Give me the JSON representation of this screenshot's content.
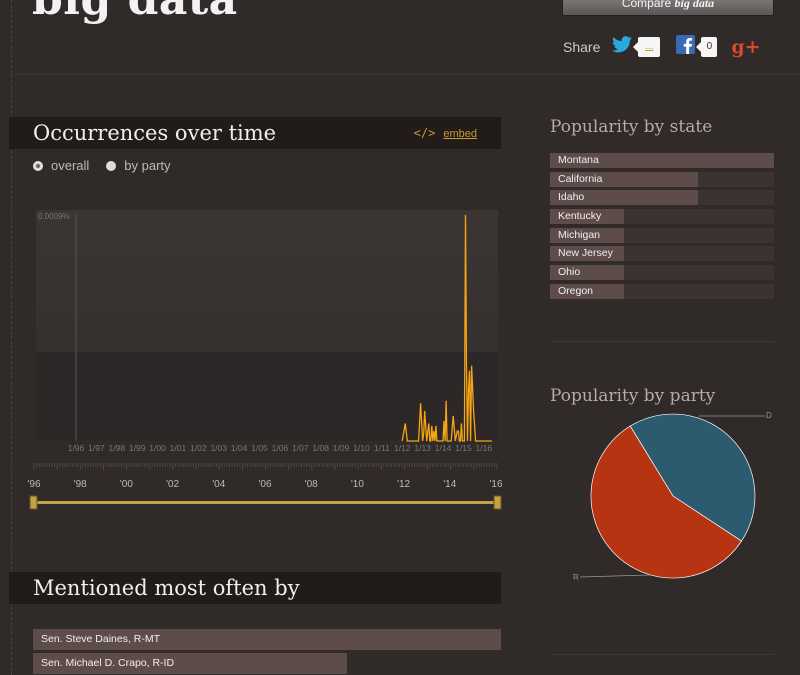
{
  "header": {
    "title": "big data",
    "compare_prefix": "Compare ",
    "compare_term": "big data",
    "share_label": "Share",
    "twitter_count": "...",
    "facebook_count": "0"
  },
  "occurrences": {
    "title": "Occurrences over time",
    "embed_code": "</>",
    "embed_label": "embed",
    "radio_overall": "overall",
    "radio_by_party": "by party",
    "selected": "overall"
  },
  "chart_data": [
    {
      "type": "line",
      "title": "Occurrences over time",
      "ylabel": "",
      "y_tick_label": "0.0009%",
      "ylim": [
        0,
        0.0009
      ],
      "x_tick_labels": [
        "1/96",
        "1/97",
        "1/98",
        "1/99",
        "1/00",
        "1/01",
        "1/02",
        "1/03",
        "1/04",
        "1/05",
        "1/06",
        "1/07",
        "1/08",
        "1/09",
        "1/10",
        "1/11",
        "1/12",
        "1/13",
        "1/14",
        "1/15",
        "1/16"
      ],
      "range_tick_labels": [
        "'96",
        "'98",
        "'00",
        "'02",
        "'04",
        "'06",
        "'08",
        "'10",
        "'12",
        "'14",
        "'16"
      ],
      "xlim": [
        1996,
        2016.5
      ],
      "color": "#f5a515",
      "series": [
        {
          "x": [
            2012.0,
            2012.15,
            2012.25,
            2012.35,
            2012.8,
            2012.9,
            2013.0,
            2013.05,
            2013.1,
            2013.2,
            2013.3,
            2013.35,
            2013.4,
            2013.45,
            2013.5,
            2013.55,
            2013.6,
            2013.65,
            2013.7,
            2013.75,
            2013.8,
            2013.9,
            2014.0,
            2014.05,
            2014.1,
            2014.15,
            2014.2,
            2014.3,
            2014.4,
            2014.5,
            2014.6,
            2014.7,
            2014.75,
            2014.8,
            2014.85,
            2014.9,
            2014.95,
            2015.0,
            2015.05,
            2015.1,
            2015.15,
            2015.2,
            2015.25,
            2015.3,
            2015.35,
            2015.4,
            2015.5,
            2015.6,
            2015.7,
            2015.8,
            2015.9,
            2016.0,
            2016.1,
            2016.2,
            2016.3,
            2016.4
          ],
          "y": [
            0,
            7e-05,
            0,
            0,
            0,
            0.00015,
            0,
            3e-05,
            0.00012,
            0,
            7e-05,
            0,
            0,
            6e-05,
            0,
            4e-05,
            0,
            6e-05,
            0,
            0.0,
            0,
            0,
            0,
            8e-05,
            0,
            0.00016,
            0,
            0,
            0,
            0.0001,
            0,
            4e-05,
            4e-05,
            0,
            0,
            7e-05,
            0,
            0,
            0.0,
            0.0009,
            0.0003,
            0,
            0.0002,
            0.00028,
            0,
            0.0003,
            0.00012,
            0,
            0,
            0,
            0,
            0,
            0,
            0,
            0,
            0
          ]
        }
      ]
    },
    {
      "type": "bar",
      "title": "Popularity by state",
      "categories": [
        "Montana",
        "California",
        "Idaho",
        "Kentucky",
        "Michigan",
        "New Jersey",
        "Ohio",
        "Oregon"
      ],
      "values": [
        1.0,
        0.66,
        0.66,
        0.33,
        0.33,
        0.33,
        0.33,
        0.33
      ]
    },
    {
      "type": "pie",
      "title": "Popularity by party",
      "labels": [
        "D",
        "R"
      ],
      "values": [
        0.43,
        0.57
      ],
      "colors": [
        "#2c5a6e",
        "#b63412"
      ]
    },
    {
      "type": "bar",
      "title": "Mentioned most often by",
      "categories": [
        "Sen. Steve Daines, R-MT",
        "Sen. Michael D. Crapo, R-ID"
      ],
      "values": [
        1.0,
        0.67
      ]
    }
  ],
  "colors": {
    "accent": "#c99a2e",
    "twitter": "#2aa9e0",
    "facebook": "#3a6ab5",
    "googleplus": "#d9482f"
  }
}
